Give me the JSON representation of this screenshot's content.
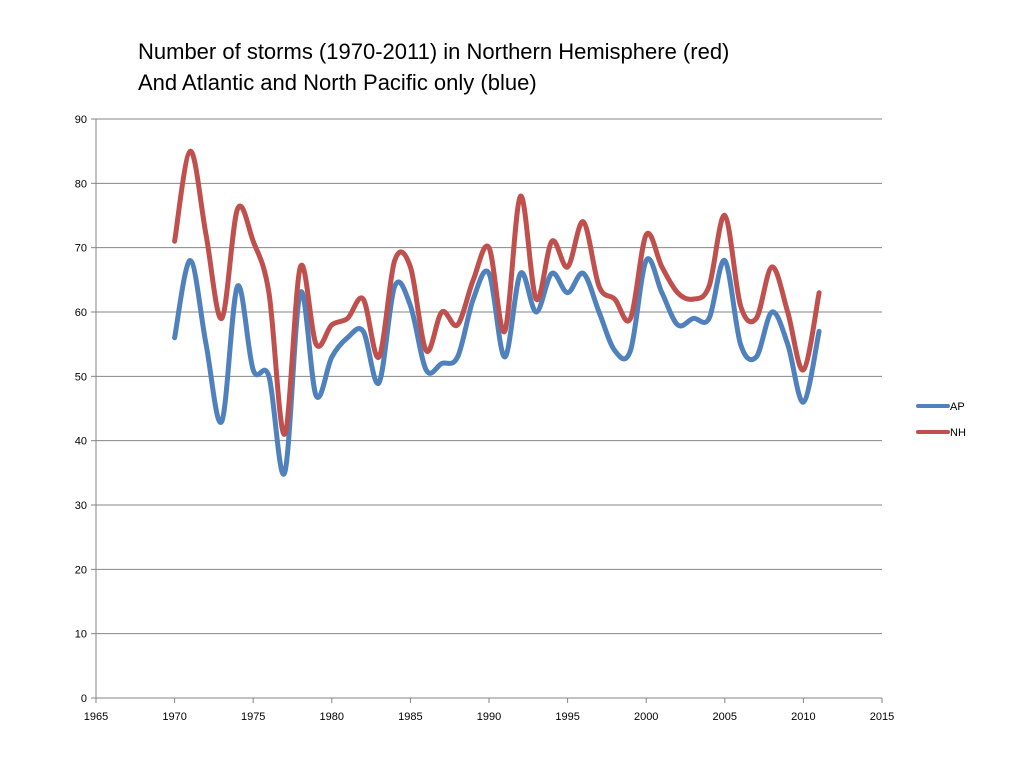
{
  "title_lines": [
    "Number of storms (1970-2011) in Northern Hemisphere (red)",
    "And Atlantic and North Pacific only (blue)"
  ],
  "chart_data": {
    "type": "line",
    "title": "Number of storms (1970-2011) in Northern Hemisphere (red) And Atlantic and North Pacific only (blue)",
    "xlabel": "",
    "ylabel": "",
    "xlim": [
      1965,
      2015
    ],
    "ylim": [
      0,
      90
    ],
    "x_ticks": [
      1965,
      1970,
      1975,
      1980,
      1985,
      1990,
      1995,
      2000,
      2005,
      2010,
      2015
    ],
    "y_ticks": [
      0,
      10,
      20,
      30,
      40,
      50,
      60,
      70,
      80,
      90
    ],
    "grid": "horizontal",
    "legend_position": "right",
    "x": [
      1970,
      1971,
      1972,
      1973,
      1974,
      1975,
      1976,
      1977,
      1978,
      1979,
      1980,
      1981,
      1982,
      1983,
      1984,
      1985,
      1986,
      1987,
      1988,
      1989,
      1990,
      1991,
      1992,
      1993,
      1994,
      1995,
      1996,
      1997,
      1998,
      1999,
      2000,
      2001,
      2002,
      2003,
      2004,
      2005,
      2006,
      2007,
      2008,
      2009,
      2010,
      2011
    ],
    "series": [
      {
        "name": "AP",
        "color": "#4F81BD",
        "values": [
          56,
          68,
          55,
          43,
          64,
          51,
          50,
          35,
          63,
          47,
          53,
          56,
          57,
          49,
          64,
          61,
          51,
          52,
          53,
          62,
          66,
          53,
          66,
          60,
          66,
          63,
          66,
          60,
          54,
          54,
          68,
          63,
          58,
          59,
          59,
          68,
          55,
          53,
          60,
          55,
          46,
          57
        ]
      },
      {
        "name": "NH",
        "color": "#C0504D",
        "values": [
          71,
          85,
          72,
          59,
          76,
          71,
          63,
          41,
          67,
          55,
          58,
          59,
          62,
          53,
          68,
          67,
          54,
          60,
          58,
          65,
          70,
          57,
          78,
          62,
          71,
          67,
          74,
          64,
          62,
          59,
          72,
          67,
          63,
          62,
          64,
          75,
          61,
          59,
          67,
          60,
          51,
          63
        ]
      }
    ]
  }
}
